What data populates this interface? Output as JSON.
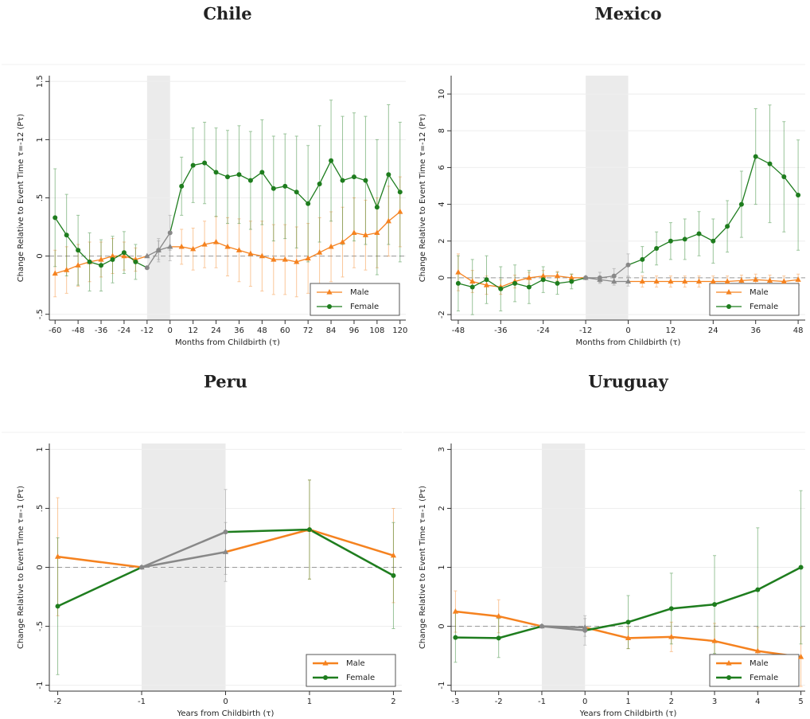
{
  "chart_data": [
    {
      "type": "line",
      "title": "Chile",
      "x_label": "Months from Childbirth (τ)",
      "y_label": "Change Relative to Event Time τ=-12 (Pτ)",
      "x": [
        -60,
        -54,
        -48,
        -42,
        -36,
        -30,
        -24,
        -18,
        -12,
        -6,
        0,
        6,
        12,
        18,
        24,
        30,
        36,
        42,
        48,
        54,
        60,
        66,
        72,
        78,
        84,
        90,
        96,
        102,
        108,
        114,
        120
      ],
      "series": [
        {
          "name": "Male",
          "color": "#f5821f",
          "marker": "triangle",
          "values": [
            -0.15,
            -0.12,
            -0.08,
            -0.05,
            -0.03,
            0.0,
            0.0,
            -0.03,
            0,
            0.05,
            0.08,
            0.08,
            0.06,
            0.1,
            0.12,
            0.08,
            0.05,
            0.02,
            0.0,
            -0.03,
            -0.03,
            -0.05,
            -0.02,
            0.03,
            0.08,
            0.12,
            0.2,
            0.18,
            0.2,
            0.3,
            0.38
          ],
          "errors": [
            0.2,
            0.2,
            0.18,
            0.17,
            0.15,
            0.15,
            0.12,
            0.1,
            0,
            0.08,
            0.12,
            0.15,
            0.18,
            0.2,
            0.22,
            0.25,
            0.27,
            0.28,
            0.3,
            0.3,
            0.3,
            0.3,
            0.3,
            0.3,
            0.3,
            0.3,
            0.3,
            0.3,
            0.3,
            0.3,
            0.3
          ]
        },
        {
          "name": "Female",
          "color": "#1e7d1e",
          "marker": "circle",
          "values": [
            0.33,
            0.18,
            0.05,
            -0.05,
            -0.08,
            -0.03,
            0.03,
            -0.05,
            -0.1,
            0.05,
            0.2,
            0.6,
            0.78,
            0.8,
            0.72,
            0.68,
            0.7,
            0.65,
            0.72,
            0.58,
            0.6,
            0.55,
            0.45,
            0.62,
            0.82,
            0.65,
            0.68,
            0.65,
            0.42,
            0.7,
            0.55
          ],
          "errors": [
            0.42,
            0.35,
            0.3,
            0.25,
            0.22,
            0.2,
            0.18,
            0.15,
            0,
            0.1,
            0.15,
            0.25,
            0.32,
            0.35,
            0.38,
            0.4,
            0.42,
            0.42,
            0.45,
            0.45,
            0.45,
            0.48,
            0.5,
            0.5,
            0.52,
            0.55,
            0.55,
            0.55,
            0.58,
            0.6,
            0.6
          ]
        }
      ],
      "xlim": [
        -63,
        123
      ],
      "xticks": [
        -60,
        -48,
        -36,
        -24,
        -12,
        0,
        12,
        24,
        36,
        48,
        60,
        72,
        84,
        96,
        108,
        120
      ],
      "ylim": [
        -0.55,
        1.55
      ],
      "yticks": [
        {
          "value": -0.5,
          "label": "-.5"
        },
        0,
        {
          "value": 0.5,
          "label": ".5"
        },
        1,
        1.5
      ],
      "shade": [
        -12,
        0
      ],
      "ref_line": 0,
      "legend": "lower right"
    },
    {
      "type": "line",
      "title": "Mexico",
      "x_label": "Months from Childbirth (τ)",
      "y_label": "Change Relative to Event Time τ=-12 (Pτ)",
      "x": [
        -48,
        -44,
        -40,
        -36,
        -32,
        -28,
        -24,
        -20,
        -16,
        -12,
        -8,
        -4,
        0,
        4,
        8,
        12,
        16,
        20,
        24,
        28,
        32,
        36,
        40,
        44,
        48
      ],
      "series": [
        {
          "name": "Male",
          "color": "#f5821f",
          "marker": "triangle",
          "values": [
            0.3,
            -0.2,
            -0.4,
            -0.5,
            -0.2,
            0.0,
            0.1,
            0.1,
            0.0,
            0,
            -0.1,
            -0.2,
            -0.2,
            -0.2,
            -0.2,
            -0.2,
            -0.2,
            -0.2,
            -0.2,
            -0.2,
            -0.15,
            -0.1,
            -0.15,
            -0.2,
            -0.1
          ],
          "errors": [
            1.0,
            0.6,
            0.5,
            0.4,
            0.35,
            0.3,
            0.3,
            0.25,
            0.2,
            0,
            0.15,
            0.2,
            0.25,
            0.3,
            0.3,
            0.3,
            0.3,
            0.3,
            0.3,
            0.3,
            0.3,
            0.3,
            0.3,
            0.3,
            0.3
          ]
        },
        {
          "name": "Female",
          "color": "#1e7d1e",
          "marker": "circle",
          "values": [
            -0.3,
            -0.5,
            -0.1,
            -0.6,
            -0.3,
            -0.5,
            -0.1,
            -0.3,
            -0.2,
            0,
            0,
            0.1,
            0.7,
            1.0,
            1.6,
            2.0,
            2.1,
            2.4,
            2.0,
            2.8,
            4.0,
            6.6,
            6.2,
            5.5,
            4.5
          ],
          "errors": [
            1.5,
            1.5,
            1.3,
            1.2,
            1.0,
            0.9,
            0.7,
            0.6,
            0.4,
            0,
            0.3,
            0.4,
            0.6,
            0.7,
            0.9,
            1.0,
            1.1,
            1.2,
            1.2,
            1.4,
            1.8,
            2.6,
            3.2,
            3.0,
            3.0
          ]
        }
      ],
      "xlim": [
        -50,
        50
      ],
      "xticks": [
        -48,
        -36,
        -24,
        -12,
        0,
        12,
        24,
        36,
        48
      ],
      "ylim": [
        -2.3,
        11
      ],
      "yticks": [
        -2,
        0,
        2,
        4,
        6,
        8,
        10
      ],
      "shade": [
        -12,
        0
      ],
      "ref_line": 0,
      "legend": "lower right"
    },
    {
      "type": "line",
      "title": "Peru",
      "x_label": "Years from Childbirth (τ)",
      "y_label": "Change Relative to Event Time τ=-1 (Pτ)",
      "x": [
        -2,
        -1,
        0,
        1,
        2
      ],
      "series": [
        {
          "name": "Male",
          "color": "#f5821f",
          "marker": "triangle",
          "values": [
            0.09,
            0,
            0.13,
            0.32,
            0.1
          ],
          "errors": [
            0.5,
            0,
            0.25,
            0.42,
            0.4
          ]
        },
        {
          "name": "Female",
          "color": "#1e7d1e",
          "marker": "circle",
          "values": [
            -0.33,
            0,
            0.3,
            0.32,
            -0.07
          ],
          "errors": [
            0.58,
            0,
            0.36,
            0.42,
            0.45
          ]
        }
      ],
      "xlim": [
        -2.1,
        2.1
      ],
      "xticks": [
        -2,
        -1,
        0,
        1,
        2
      ],
      "ylim": [
        -1.05,
        1.05
      ],
      "yticks": [
        -1,
        {
          "value": -0.5,
          "label": "-.5"
        },
        0,
        {
          "value": 0.5,
          "label": ".5"
        },
        1
      ],
      "shade": [
        -1,
        0
      ],
      "ref_line": 0,
      "legend": "lower right"
    },
    {
      "type": "line",
      "title": "Uruguay",
      "x_label": "Years from Childbirth (τ)",
      "y_label": "Change Relative to Event Time τ=-1 (Pτ)",
      "x": [
        -3,
        -2,
        -1,
        0,
        1,
        2,
        3,
        4,
        5
      ],
      "series": [
        {
          "name": "Male",
          "color": "#f5821f",
          "marker": "triangle",
          "values": [
            0.25,
            0.17,
            0,
            -0.02,
            -0.2,
            -0.18,
            -0.25,
            -0.42,
            -0.52
          ],
          "errors": [
            0.35,
            0.28,
            0,
            0.15,
            0.18,
            0.25,
            0.3,
            0.4,
            0.5
          ]
        },
        {
          "name": "Female",
          "color": "#1e7d1e",
          "marker": "circle",
          "values": [
            -0.19,
            -0.2,
            0,
            -0.07,
            0.07,
            0.3,
            0.37,
            0.62,
            1.0
          ],
          "errors": [
            0.42,
            0.33,
            0,
            0.25,
            0.45,
            0.6,
            0.83,
            1.05,
            1.3
          ]
        }
      ],
      "xlim": [
        -3.1,
        5.1
      ],
      "xticks": [
        -3,
        -2,
        -1,
        0,
        1,
        2,
        3,
        4,
        5
      ],
      "ylim": [
        -1.1,
        3.1
      ],
      "yticks": [
        -1,
        0,
        1,
        2,
        3
      ],
      "shade": [
        -1,
        0
      ],
      "ref_line": 0,
      "legend": "lower right"
    }
  ]
}
